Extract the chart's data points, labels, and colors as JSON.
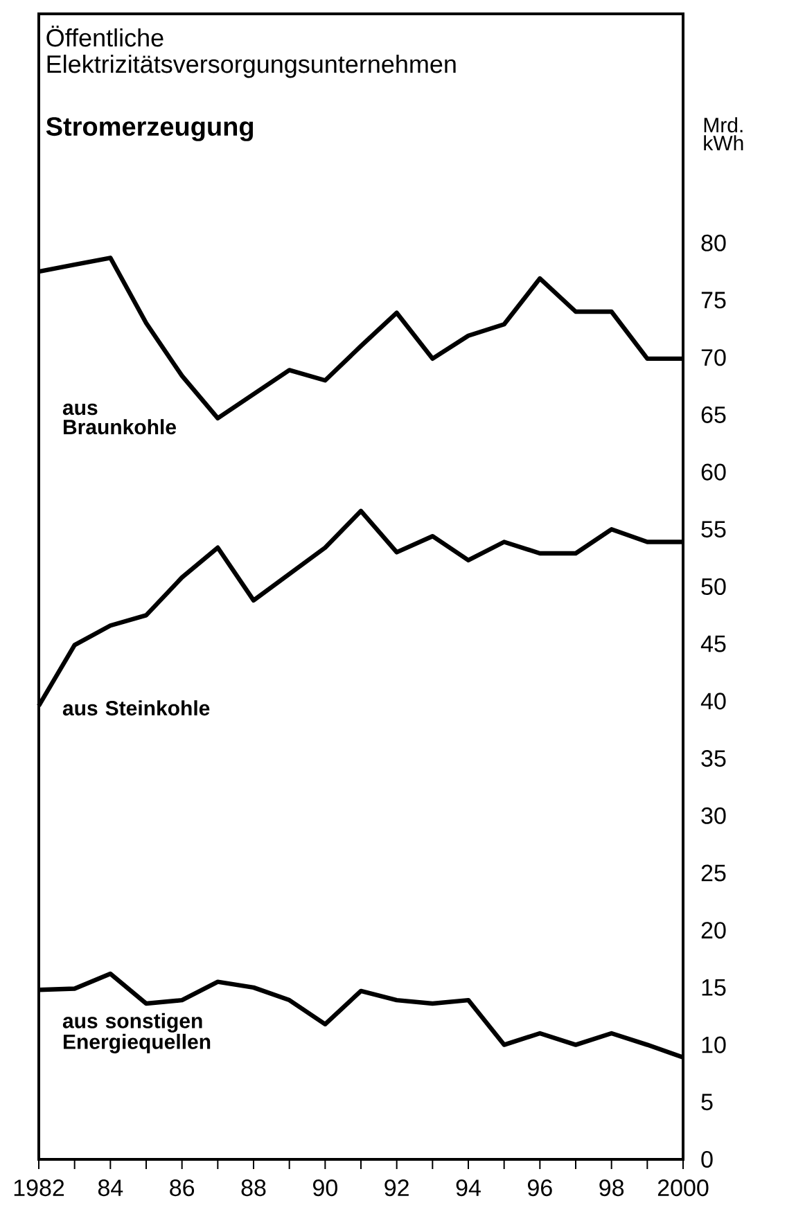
{
  "chart_data": {
    "type": "line",
    "title": "Öffentliche Elektrizitätsversorgungsunternehmen",
    "subtitle": "Stromerzeugung",
    "ylabel": "Mrd. kWh",
    "x": [
      1982,
      1983,
      1984,
      1985,
      1986,
      1987,
      1988,
      1989,
      1990,
      1991,
      1992,
      1993,
      1994,
      1995,
      1996,
      1997,
      1998,
      1999,
      2000
    ],
    "series": [
      {
        "name": "aus Braunkohle",
        "color": "#000000",
        "values": [
          77.5,
          78.1,
          78.7,
          73,
          68.4,
          64.7,
          66.8,
          68.9,
          68,
          71,
          73.9,
          69.9,
          71.9,
          72.9,
          76.9,
          74,
          74,
          69.9,
          69.9
        ]
      },
      {
        "name": "aus Steinkohle",
        "color": "#000000",
        "values": [
          39.6,
          44.9,
          46.6,
          47.5,
          50.8,
          53.4,
          48.8,
          51.1,
          53.4,
          56.6,
          53,
          54.4,
          52.3,
          53.9,
          52.9,
          52.9,
          55,
          53.9,
          53.9
        ]
      },
      {
        "name": "aus sonstigen Energiequellen",
        "color": "#000000",
        "values": [
          14.8,
          14.9,
          16.2,
          13.6,
          13.9,
          15.5,
          15,
          13.9,
          11.8,
          14.7,
          13.9,
          13.6,
          13.9,
          10,
          11,
          10,
          11,
          10,
          8.9
        ]
      }
    ],
    "xlim": [
      1982,
      2000
    ],
    "xticks": [
      1982,
      {
        "value": 1983,
        "label": null
      },
      {
        "value": 1984,
        "label": "84"
      },
      {
        "value": 1985,
        "label": null
      },
      {
        "value": 1986,
        "label": "86"
      },
      {
        "value": 1987,
        "label": null
      },
      {
        "value": 1988,
        "label": "88"
      },
      {
        "value": 1989,
        "label": null
      },
      {
        "value": 1990,
        "label": "90"
      },
      {
        "value": 1991,
        "label": null
      },
      {
        "value": 1992,
        "label": "92"
      },
      {
        "value": 1993,
        "label": null
      },
      {
        "value": 1994,
        "label": "94"
      },
      {
        "value": 1995,
        "label": null
      },
      {
        "value": 1996,
        "label": "96"
      },
      {
        "value": 1997,
        "label": null
      },
      {
        "value": 1998,
        "label": "98"
      },
      {
        "value": 1999,
        "label": null
      },
      {
        "value": 2000,
        "label": "2000"
      }
    ],
    "ylim": [
      0,
      100
    ],
    "yticks": [
      0,
      5,
      10,
      15,
      20,
      25,
      30,
      35,
      40,
      45,
      50,
      55,
      60,
      65,
      70,
      75,
      80
    ],
    "grid": false,
    "legend": false,
    "line_style": "solid"
  }
}
